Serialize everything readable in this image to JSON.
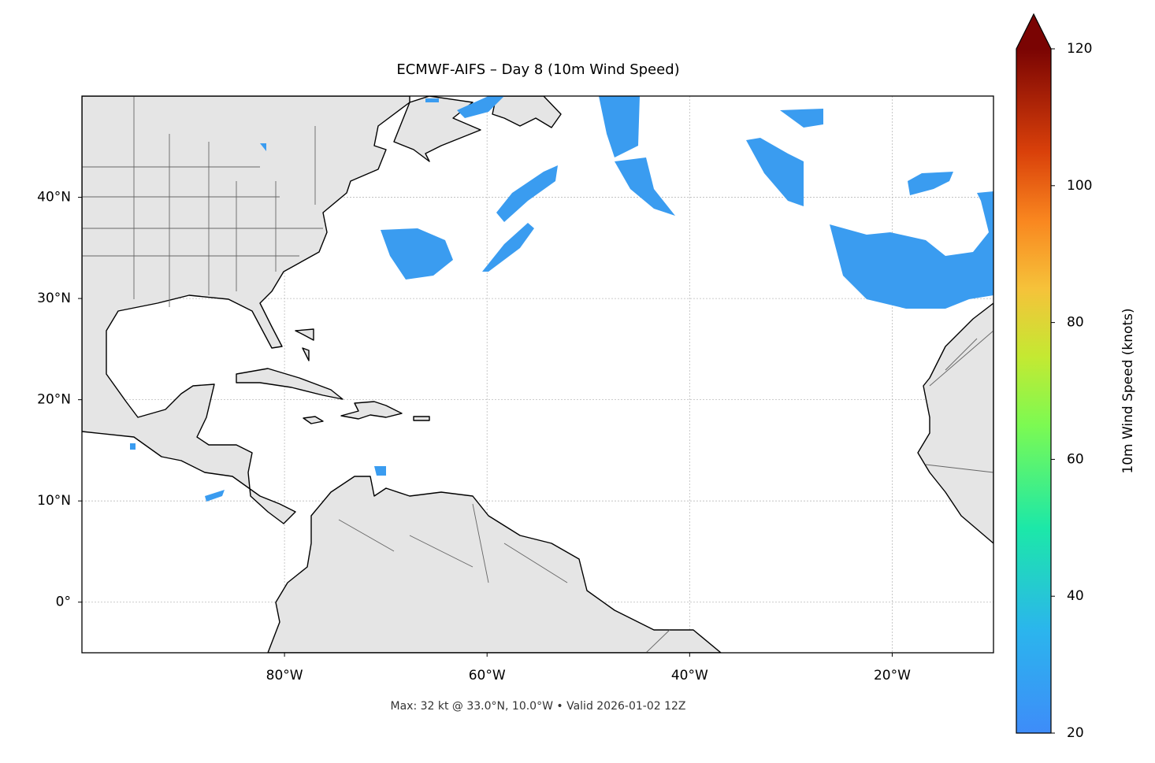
{
  "chart_data": {
    "type": "map",
    "title": "ECMWF-AIFS – Day 8 (10m Wind Speed)",
    "footnote": "Max: 32 kt @ 33.0°N, 10.0°W • Valid 2026-01-02 12Z",
    "xlim": [
      -100,
      -10
    ],
    "ylim": [
      -5,
      50
    ],
    "xticks": [
      {
        "value": -80,
        "label": "80°W"
      },
      {
        "value": -60,
        "label": "60°W"
      },
      {
        "value": -40,
        "label": "40°W"
      },
      {
        "value": -20,
        "label": "20°W"
      }
    ],
    "yticks": [
      {
        "value": 0,
        "label": "0°"
      },
      {
        "value": 10,
        "label": "10°N"
      },
      {
        "value": 20,
        "label": "20°N"
      },
      {
        "value": 30,
        "label": "30°N"
      },
      {
        "value": 40,
        "label": "40°N"
      }
    ],
    "grid": true,
    "colorbar": {
      "label": "10m Wind Speed (knots)",
      "lim": [
        20,
        120
      ],
      "ticks": [
        20,
        40,
        60,
        80,
        100,
        120
      ],
      "extend": "max"
    }
  }
}
